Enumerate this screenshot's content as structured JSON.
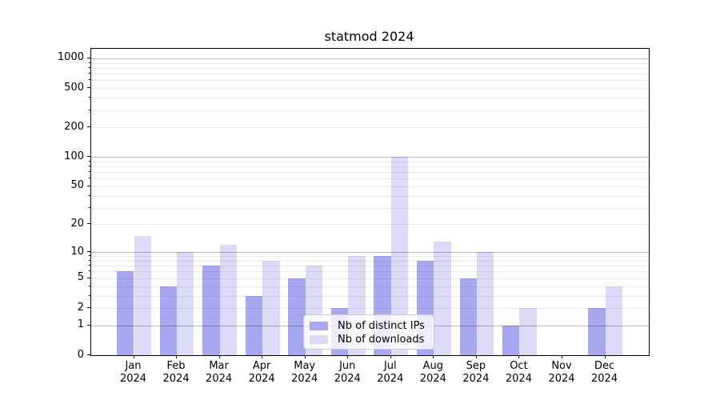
{
  "title": "statmod 2024",
  "chart_data": {
    "type": "bar",
    "title": "statmod 2024",
    "categories": [
      "Jan",
      "Feb",
      "Mar",
      "Apr",
      "May",
      "Jun",
      "Jul",
      "Aug",
      "Sep",
      "Oct",
      "Nov",
      "Dec"
    ],
    "x_year_label": "2024",
    "series": [
      {
        "name": "Nb of distinct IPs",
        "color": "#a8a8f0",
        "values": [
          6,
          4,
          7,
          3,
          5,
          2,
          9,
          8,
          5,
          1,
          0,
          2
        ]
      },
      {
        "name": "Nb of downloads",
        "color": "#dbdbf8",
        "values": [
          15,
          10,
          12,
          8,
          7,
          9,
          100,
          13,
          10,
          2,
          0,
          4
        ]
      }
    ],
    "y_scale": "log1p",
    "ylim": [
      0,
      1250
    ],
    "y_ticks": [
      0,
      1,
      2,
      5,
      10,
      20,
      50,
      100,
      200,
      500,
      1000
    ],
    "y_minor_ticks": [
      3,
      4,
      6,
      7,
      8,
      9,
      30,
      40,
      60,
      70,
      80,
      90,
      300,
      400,
      600,
      700,
      800,
      900
    ],
    "grid_major_values": [
      1,
      10,
      100,
      1000
    ],
    "legend_position": "lower center",
    "grid": "both",
    "colors": {
      "bar_ips": "#a8a8f0",
      "bar_downloads": "#dbdbf8",
      "grid_major": "#bababa",
      "grid_minor": "#ececec",
      "spine": "#000000"
    }
  }
}
